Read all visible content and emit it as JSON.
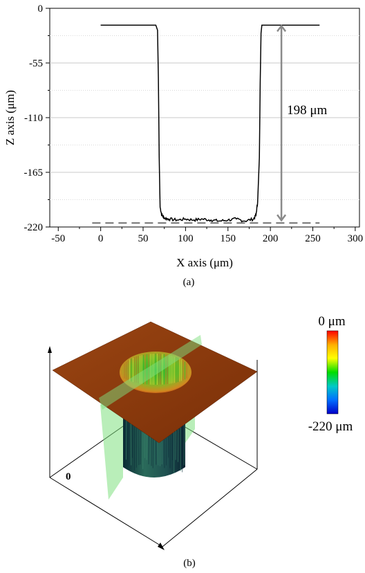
{
  "chart_data": {
    "type": "line",
    "xlabel": "X axis (μm)",
    "ylabel": "Z axis (μm)",
    "xlim": [
      -60,
      305
    ],
    "ylim": [
      -220,
      0
    ],
    "x_ticks": [
      -50,
      0,
      50,
      100,
      150,
      200,
      250,
      300
    ],
    "y_ticks": [
      0,
      -55,
      -110,
      -165,
      -220
    ],
    "x_tick_labels": [
      "-50",
      "0",
      "50",
      "100",
      "150",
      "200",
      "250",
      "300"
    ],
    "y_tick_labels": [
      "0",
      "-55",
      "-110",
      "-165",
      "-220"
    ],
    "grid": "horizontal",
    "series": [
      {
        "color": "#000000",
        "x": [
          0,
          20,
          40,
          60,
          65,
          67,
          68,
          69,
          70,
          72,
          75,
          80,
          90,
          100,
          110,
          120,
          130,
          140,
          150,
          160,
          170,
          180,
          183,
          185,
          187,
          188,
          189,
          190,
          192,
          195,
          200,
          220,
          240,
          258
        ],
        "y": [
          -17,
          -17,
          -17,
          -17,
          -17,
          -22,
          -70,
          -150,
          -200,
          -208,
          -211,
          -212,
          -213,
          -212,
          -213,
          -212,
          -213,
          -214,
          -213,
          -212,
          -214,
          -212,
          -208,
          -195,
          -150,
          -75,
          -25,
          -17,
          -17,
          -17,
          -17,
          -17,
          -17,
          -17
        ]
      }
    ],
    "reference_line": {
      "y": -216,
      "x_range": [
        -10,
        258
      ],
      "style": "dashed",
      "color": "#707070"
    },
    "depth_annotation": {
      "text": "198 μm",
      "x": 213,
      "y_from": -17,
      "y_to": -214,
      "color": "#8a8a8a"
    },
    "panel_label": "(a)"
  },
  "panel_b": {
    "label": "(b)",
    "axis_zero_label": "0",
    "colorbar": {
      "top_label": "0 μm",
      "bottom_label": "-220 μm",
      "stops": [
        "#ff0000",
        "#ffb000",
        "#ffff00",
        "#00dd00",
        "#00c8c8",
        "#0070ff",
        "#0000c8"
      ]
    },
    "colors": {
      "surface": "#8a3a0c",
      "well_wall": "#1f4a4a",
      "cut_plane": "#7fe07f"
    }
  }
}
